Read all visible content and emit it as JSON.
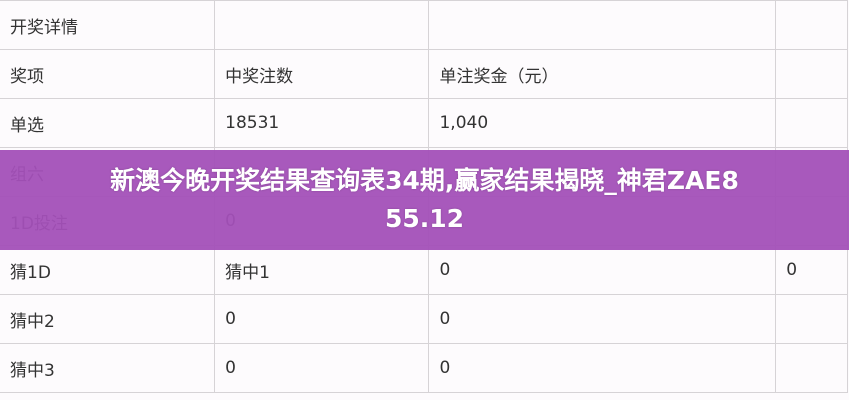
{
  "table": {
    "rows": [
      [
        "开奖详情",
        "",
        "",
        ""
      ],
      [
        "奖项",
        "中奖注数",
        "单注奖金（元）",
        ""
      ],
      [
        "单选",
        "18531",
        "1,040",
        ""
      ],
      [
        "组六",
        "",
        "",
        ""
      ],
      [
        "1D投注",
        "0",
        "",
        ""
      ],
      [
        "猜1D",
        "猜中1",
        "0",
        "0"
      ],
      [
        "猜中2",
        "0",
        "0",
        ""
      ],
      [
        "猜中3",
        "0",
        "0",
        ""
      ]
    ]
  },
  "banner": {
    "line1": "新澳今晚开奖结果查询表34期,赢家结果揭晓_神君ZAE8",
    "line2": "55.12",
    "color": "#a350b8"
  }
}
